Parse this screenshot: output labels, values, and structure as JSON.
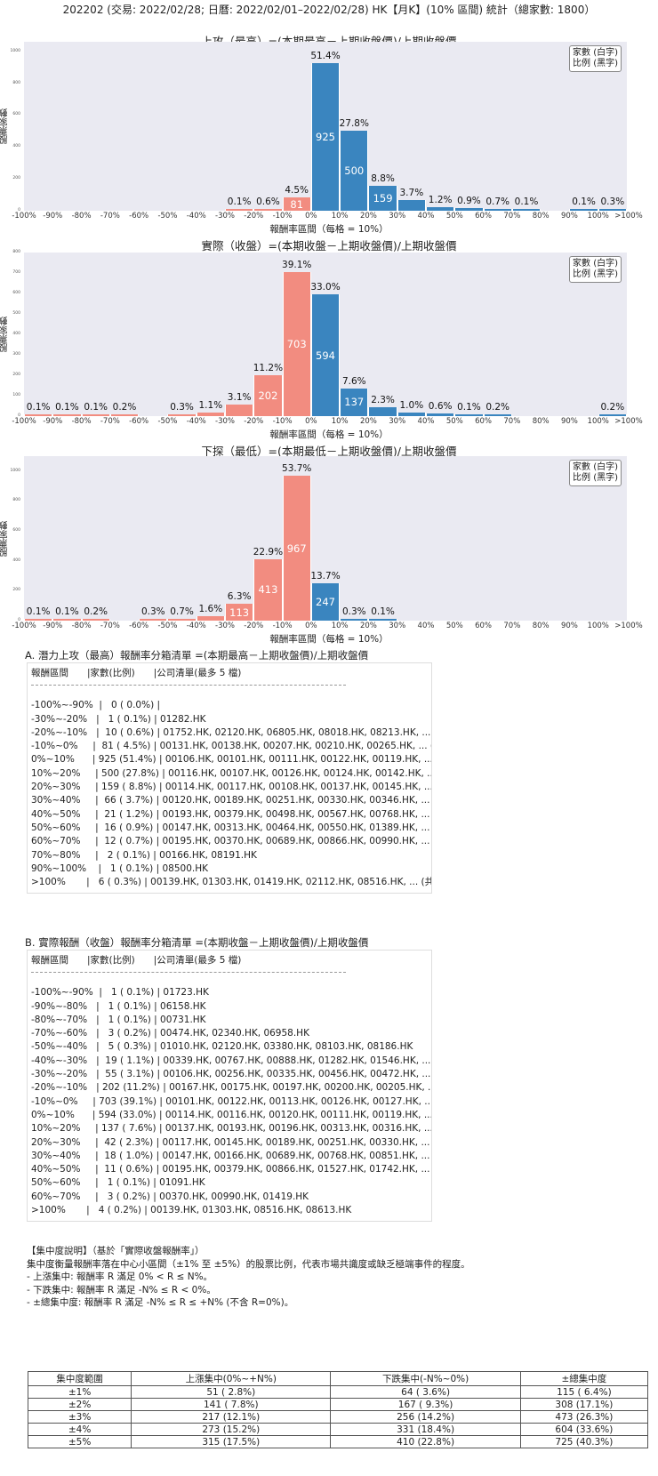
{
  "header": {
    "title": "202202 (交易: 2022/02/28; 日曆: 2022/02/01–2022/02/28) HK【月K】(10% 區間) 統計（總家數: 1800）"
  },
  "legend": {
    "line1": "家數 (白字)",
    "line2": "比例 (黑字)"
  },
  "axis": {
    "ylabel": "股票家數",
    "xlabel_full": "報酬率區間（每格 = 10%）",
    "xlabel_short": "報酬率區間",
    "xticks": [
      "-100%",
      "-90%",
      "-80%",
      "-70%",
      "-60%",
      "-50%",
      "-40%",
      "-30%",
      "-20%",
      "-10%",
      "0%",
      "10%",
      "20%",
      "30%",
      "40%",
      "50%",
      "60%",
      "70%",
      "80%",
      "90%",
      "100%",
      ">100%"
    ]
  },
  "chart_data": [
    {
      "type": "bar",
      "title": "上攻（最高）=(本期最高－上期收盤價)/上期收盤價",
      "xlabel": "報酬率區間（每格 = 10%）",
      "ylabel": "股票家數",
      "ylim": [
        0,
        1060
      ],
      "yticks": [
        0,
        200,
        400,
        600,
        800,
        1000
      ],
      "categories": [
        "-100~-90",
        "-90~-80",
        "-80~-70",
        "-70~-60",
        "-60~-50",
        "-50~-40",
        "-40~-30",
        "-30~-20",
        "-20~-10",
        "-10~0",
        "0~10",
        "10~20",
        "20~30",
        "30~40",
        "40~50",
        "50~60",
        "60~70",
        "70~80",
        "80~90",
        "90~100",
        ">100"
      ],
      "values": [
        0,
        0,
        0,
        0,
        0,
        0,
        0,
        1,
        10,
        81,
        925,
        500,
        159,
        66,
        21,
        16,
        12,
        2,
        0,
        1,
        6
      ],
      "pct_labels": [
        "",
        "",
        "",
        "",
        "",
        "",
        "",
        "0.1%",
        "0.6%",
        "4.5%",
        "51.4%",
        "27.8%",
        "8.8%",
        "3.7%",
        "1.2%",
        "0.9%",
        "0.7%",
        "0.1%",
        "",
        "0.1%",
        "0.3%"
      ],
      "colors": {
        "negative": "#f28c80",
        "positive": "#3a85bf"
      }
    },
    {
      "type": "bar",
      "title": "實際（收盤）=(本期收盤－上期收盤價)/上期收盤價",
      "xlabel": "報酬率區間（每格 = 10%）",
      "ylabel": "股票家數",
      "ylim": [
        0,
        800
      ],
      "yticks": [
        0,
        100,
        200,
        300,
        400,
        500,
        600,
        700,
        800
      ],
      "categories": [
        "-100~-90",
        "-90~-80",
        "-80~-70",
        "-70~-60",
        "-60~-50",
        "-50~-40",
        "-40~-30",
        "-30~-20",
        "-20~-10",
        "-10~0",
        "0~10",
        "10~20",
        "20~30",
        "30~40",
        "40~50",
        "50~60",
        "60~70",
        "70~80",
        "80~90",
        "90~100",
        ">100"
      ],
      "values": [
        1,
        1,
        1,
        3,
        0,
        5,
        19,
        55,
        202,
        703,
        594,
        137,
        42,
        18,
        11,
        1,
        3,
        0,
        0,
        0,
        4
      ],
      "pct_labels": [
        "0.1%",
        "0.1%",
        "0.1%",
        "0.2%",
        "",
        "0.3%",
        "1.1%",
        "3.1%",
        "11.2%",
        "39.1%",
        "33.0%",
        "7.6%",
        "2.3%",
        "1.0%",
        "0.6%",
        "0.1%",
        "0.2%",
        "",
        "",
        "",
        "0.2%"
      ],
      "colors": {
        "negative": "#f28c80",
        "positive": "#3a85bf"
      }
    },
    {
      "type": "bar",
      "title": "下探（最低）=(本期最低－上期收盤價)/上期收盤價",
      "xlabel": "報酬率區間（每格 = 10%）",
      "ylabel": "股票家數",
      "ylim": [
        0,
        1100
      ],
      "yticks": [
        0,
        200,
        400,
        600,
        800,
        1000
      ],
      "categories": [
        "-100~-90",
        "-90~-80",
        "-80~-70",
        "-70~-60",
        "-60~-50",
        "-50~-40",
        "-40~-30",
        "-30~-20",
        "-20~-10",
        "-10~0",
        "0~10",
        "10~20",
        "20~30",
        "30~40",
        "40~50",
        "50~60",
        "60~70",
        "70~80",
        "80~90",
        "90~100",
        ">100"
      ],
      "values": [
        1,
        1,
        4,
        0,
        5,
        12,
        29,
        113,
        413,
        967,
        247,
        5,
        2,
        0,
        0,
        0,
        0,
        0,
        0,
        0,
        0
      ],
      "pct_labels": [
        "0.1%",
        "0.1%",
        "0.2%",
        "",
        "0.3%",
        "0.7%",
        "1.6%",
        "6.3%",
        "22.9%",
        "53.7%",
        "13.7%",
        "0.3%",
        "0.1%",
        "",
        "",
        "",
        "",
        "",
        "",
        "",
        ""
      ],
      "colors": {
        "negative": "#f28c80",
        "positive": "#3a85bf"
      }
    }
  ],
  "list_a": {
    "title": "A. 潛力上攻（最高）報酬率分箱清單 =(本期最高－上期收盤價)/上期收盤價",
    "header": "報酬區間　　|家數(比例)　　|公司清單(最多 5 檔)",
    "rows": [
      "-100%~-90%  |   0 ( 0.0%) |",
      "-30%~-20%   |   1 ( 0.1%) | 01282.HK",
      "-20%~-10%   |  10 ( 0.6%) | 01752.HK, 02120.HK, 06805.HK, 08018.HK, 08213.HK, ... (共 10 檔)",
      "-10%~0%     |  81 ( 4.5%) | 00131.HK, 00138.HK, 00207.HK, 00210.HK, 00265.HK, ... (共 81 檔)",
      "0%~10%      | 925 (51.4%) | 00106.HK, 00101.HK, 00111.HK, 00122.HK, 00119.HK, ... (共 925 檔)",
      "10%~20%     | 500 (27.8%) | 00116.HK, 00107.HK, 00126.HK, 00124.HK, 00142.HK, ... (共 500 檔)",
      "20%~30%     | 159 ( 8.8%) | 00114.HK, 00117.HK, 00108.HK, 00137.HK, 00145.HK, ... (共 159 檔)",
      "30%~40%     |  66 ( 3.7%) | 00120.HK, 00189.HK, 00251.HK, 00330.HK, 00346.HK, ... (共 66 檔)",
      "40%~50%     |  21 ( 1.2%) | 00193.HK, 00379.HK, 00498.HK, 00567.HK, 00768.HK, ... (共 21 檔)",
      "50%~60%     |  16 ( 0.9%) | 00147.HK, 00313.HK, 00464.HK, 00550.HK, 01389.HK, ... (共 16 檔)",
      "60%~70%     |  12 ( 0.7%) | 00195.HK, 00370.HK, 00689.HK, 00866.HK, 00990.HK, ... (共 12 檔)",
      "70%~80%     |   2 ( 0.1%) | 00166.HK, 08191.HK",
      "90%~100%    |   1 ( 0.1%) | 08500.HK",
      ">100%       |   6 ( 0.3%) | 00139.HK, 01303.HK, 01419.HK, 02112.HK, 08516.HK, ... (共 6 檔)"
    ]
  },
  "list_b": {
    "title": "B. 實際報酬（收盤）報酬率分箱清單 =(本期收盤－上期收盤價)/上期收盤價",
    "header": "報酬區間　　|家數(比例)　　|公司清單(最多 5 檔)",
    "rows": [
      "-100%~-90%  |   1 ( 0.1%) | 01723.HK",
      "-90%~-80%   |   1 ( 0.1%) | 06158.HK",
      "-80%~-70%   |   1 ( 0.1%) | 00731.HK",
      "-70%~-60%   |   3 ( 0.2%) | 00474.HK, 02340.HK, 06958.HK",
      "-50%~-40%   |   5 ( 0.3%) | 01010.HK, 02120.HK, 03380.HK, 08103.HK, 08186.HK",
      "-40%~-30%   |  19 ( 1.1%) | 00339.HK, 00767.HK, 00888.HK, 01282.HK, 01546.HK, ... (共 19 檔)",
      "-30%~-20%   |  55 ( 3.1%) | 00106.HK, 00256.HK, 00335.HK, 00456.HK, 00472.HK, ... (共 55 檔)",
      "-20%~-10%   | 202 (11.2%) | 00167.HK, 00175.HK, 00197.HK, 00200.HK, 00205.HK, ... (共 202 檔)",
      "-10%~0%     | 703 (39.1%) | 00101.HK, 00122.HK, 00113.HK, 00126.HK, 00127.HK, ... (共 703 檔)",
      "0%~10%      | 594 (33.0%) | 00114.HK, 00116.HK, 00120.HK, 00111.HK, 00119.HK, ... (共 594 檔)",
      "10%~20%     | 137 ( 7.6%) | 00137.HK, 00193.HK, 00196.HK, 00313.HK, 00316.HK, ... (共 137 檔)",
      "20%~30%     |  42 ( 2.3%) | 00117.HK, 00145.HK, 00189.HK, 00251.HK, 00330.HK, ... (共 42 檔)",
      "30%~40%     |  18 ( 1.0%) | 00147.HK, 00166.HK, 00689.HK, 00768.HK, 00851.HK, ... (共 18 檔)",
      "40%~50%     |  11 ( 0.6%) | 00195.HK, 00379.HK, 00866.HK, 01527.HK, 01742.HK, ... (共 11 檔)",
      "50%~60%     |   1 ( 0.1%) | 01091.HK",
      "60%~70%     |   3 ( 0.2%) | 00370.HK, 00990.HK, 01419.HK",
      ">100%       |   4 ( 0.2%) | 00139.HK, 01303.HK, 08516.HK, 08613.HK"
    ]
  },
  "concentration": {
    "heading": "【集中度說明】（基於「實際收盤報酬率」）",
    "desc": "集中度衡量報酬率落在中心小區間（±1% 至 ±5%）的股票比例，代表市場共識度或缺乏極端事件的程度。",
    "bullets": [
      "- 上漲集中: 報酬率 R 滿足 0% < R ≤ N%。",
      "- 下跌集中: 報酬率 R 滿足 -N% ≤ R < 0%。",
      "- ±總集中度: 報酬率 R 滿足 -N% ≤ R ≤ +N% (不含 R=0%)。"
    ],
    "table": {
      "headers": [
        "集中度範圍",
        "上漲集中(0%~+N%)",
        "下跌集中(-N%~0%)",
        "±總集中度"
      ],
      "rows": [
        [
          "±1%",
          "51 ( 2.8%)",
          "64 ( 3.6%)",
          "115 ( 6.4%)"
        ],
        [
          "±2%",
          "141 ( 7.8%)",
          "167 ( 9.3%)",
          "308 (17.1%)"
        ],
        [
          "±3%",
          "217 (12.1%)",
          "256 (14.2%)",
          "473 (26.3%)"
        ],
        [
          "±4%",
          "273 (15.2%)",
          "331 (18.4%)",
          "604 (33.6%)"
        ],
        [
          "±5%",
          "315 (17.5%)",
          "410 (22.8%)",
          "725 (40.3%)"
        ]
      ]
    }
  }
}
